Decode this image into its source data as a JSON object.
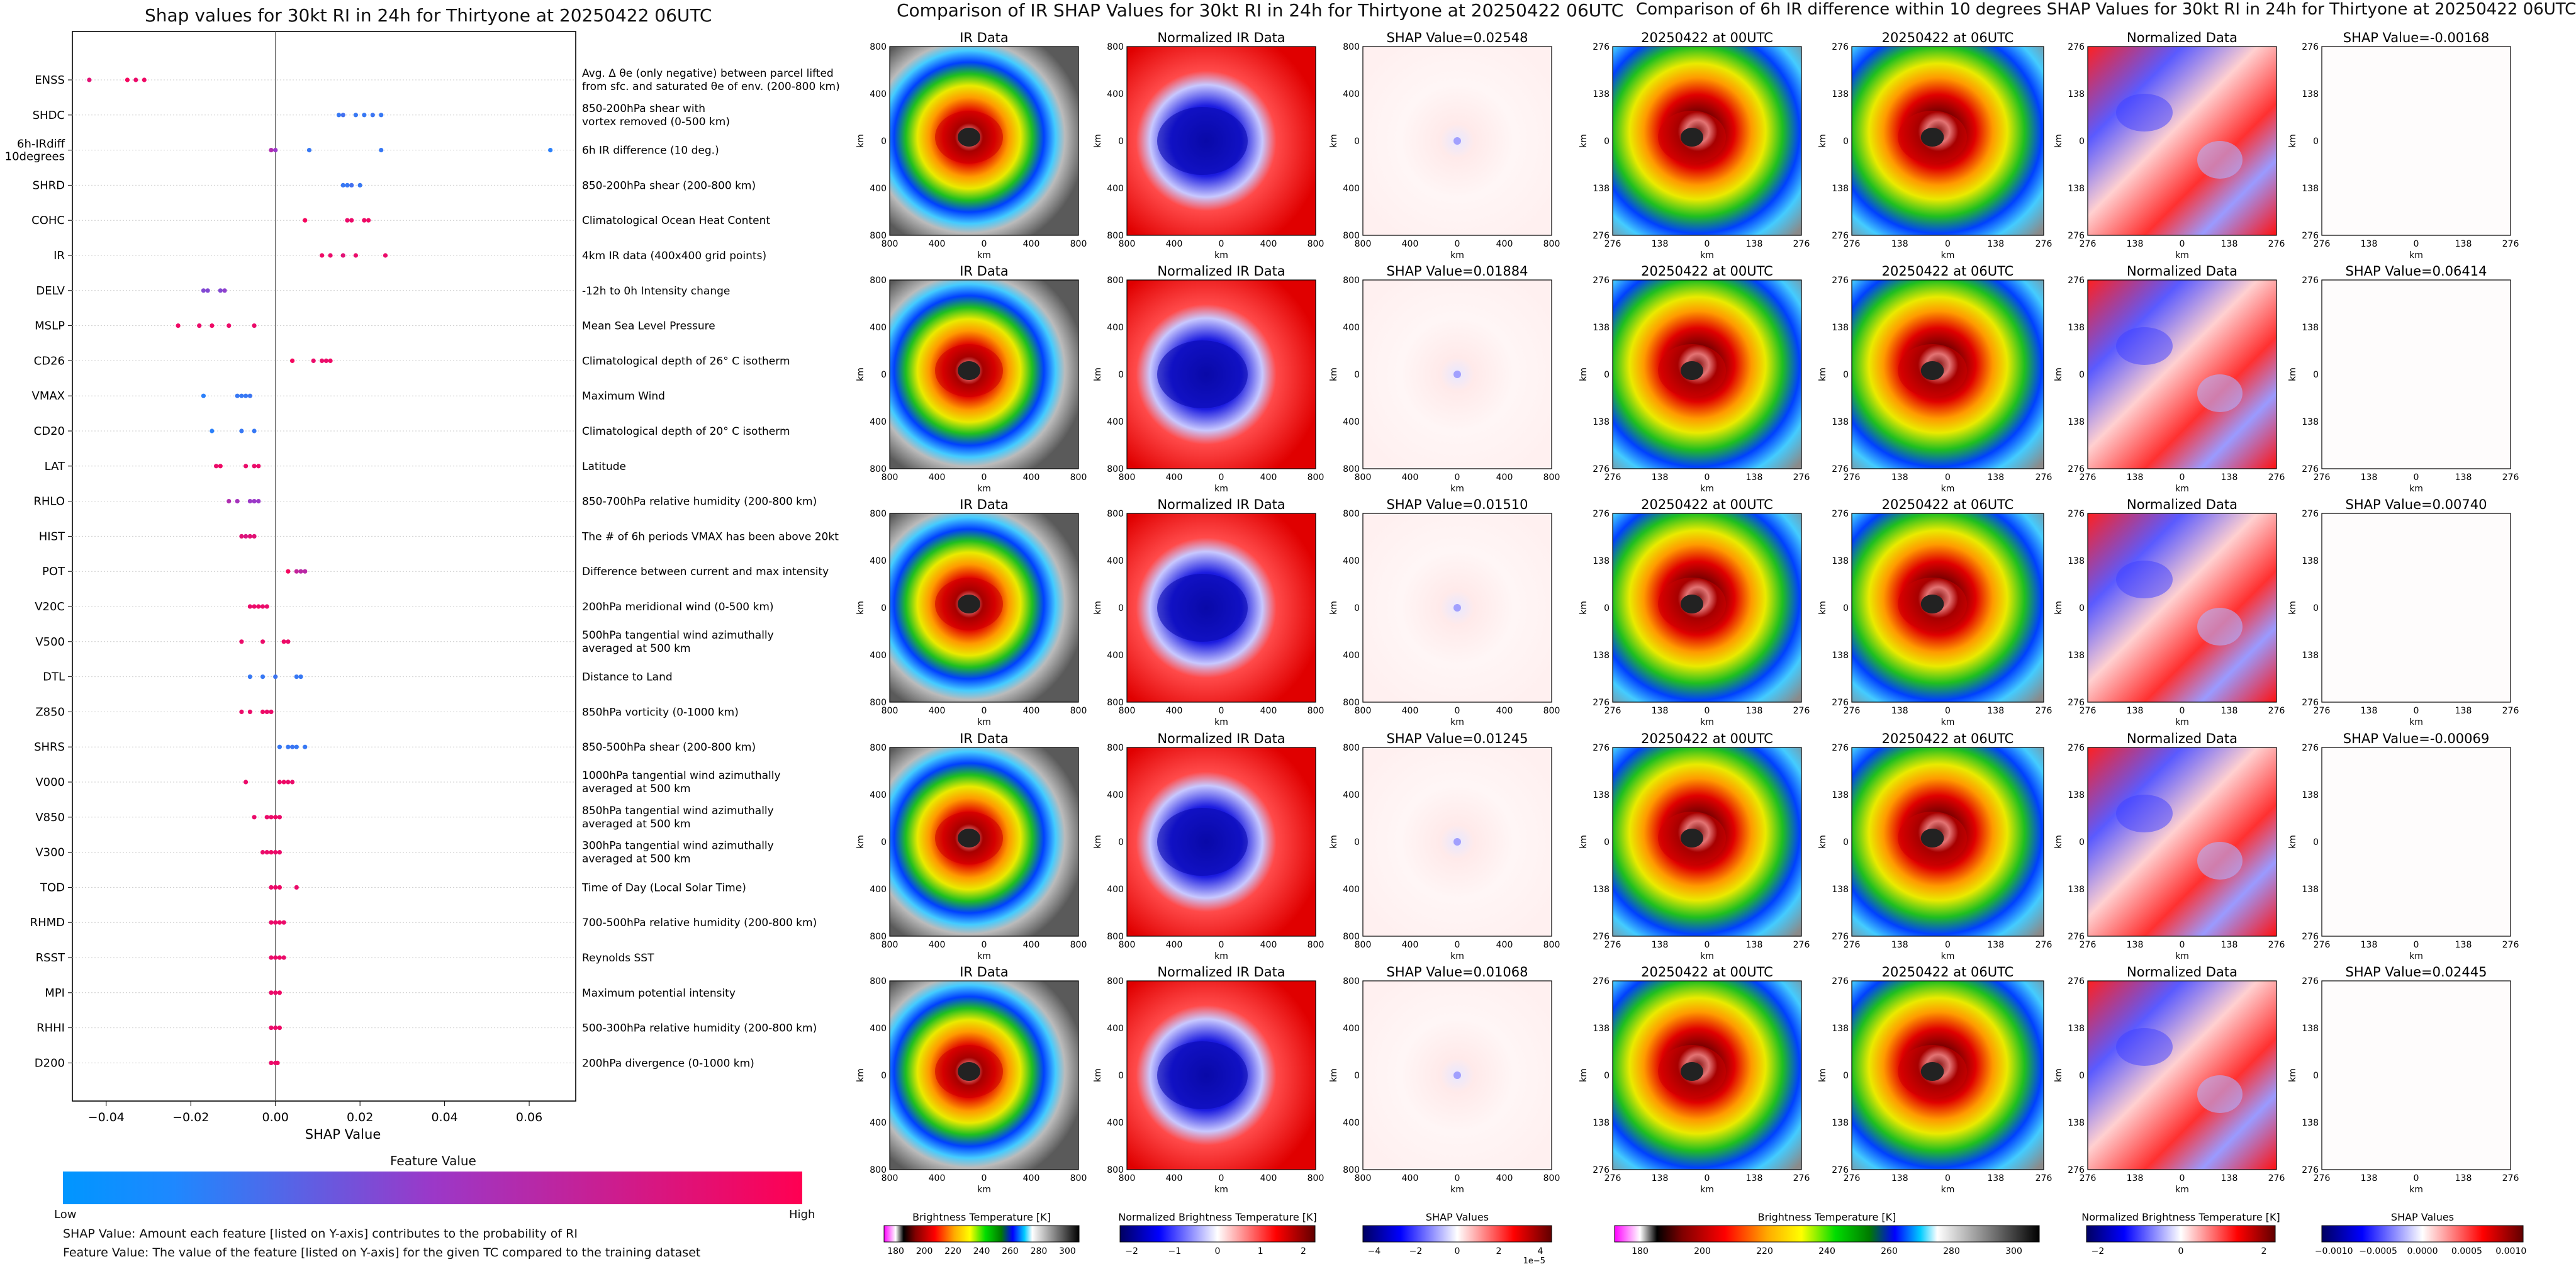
{
  "shap_panel": {
    "title": "Shap values for 30kt RI in 24h for Thirtyone at 20250422 06UTC",
    "xlabel": "SHAP Value",
    "xlim": [
      -0.048,
      0.071
    ],
    "xticks": [
      "−0.04",
      "−0.02",
      "0.00",
      "0.02",
      "0.04",
      "0.06"
    ],
    "xtick_values": [
      -0.04,
      -0.02,
      0.0,
      0.02,
      0.04,
      0.06
    ],
    "colorbar_title": "Feature Value",
    "colorbar_low": "Low",
    "colorbar_high": "High",
    "colors": {
      "low": "#1e88ff",
      "mid": "#9b38c8",
      "high": "#ff0052"
    },
    "footnote_1": "SHAP Value: Amount each feature [listed on Y-axis] contributes to the probability of RI",
    "footnote_2": "Feature Value: The value of the feature [listed on Y-axis] for the given TC compared to the training dataset"
  },
  "chart_data": [
    {
      "type": "scatter",
      "title": "Shap values for 30kt RI in 24h for Thirtyone at 20250422 06UTC",
      "xlabel": "SHAP Value",
      "features": [
        {
          "name": "ENSS",
          "desc": [
            "Avg. Δ θe (only negative) between parcel lifted",
            "from sfc. and saturated θe of env. (200-800 km)"
          ],
          "points": [
            [
              -0.044,
              0.85
            ],
            [
              -0.035,
              0.95
            ],
            [
              -0.033,
              0.9
            ],
            [
              -0.031,
              0.92
            ]
          ]
        },
        {
          "name": "SHDC",
          "desc": [
            "850-200hPa shear with",
            "vortex removed (0-500 km)"
          ],
          "points": [
            [
              0.015,
              0.1
            ],
            [
              0.016,
              0.15
            ],
            [
              0.019,
              0.1
            ],
            [
              0.021,
              0.1
            ],
            [
              0.023,
              0.12
            ],
            [
              0.025,
              0.1
            ]
          ]
        },
        {
          "name": "6h-IRdiff",
          "name2": "10degrees",
          "desc": [
            "6h IR difference (10 deg.)"
          ],
          "points": [
            [
              -0.001,
              0.6
            ],
            [
              0.0,
              0.5
            ],
            [
              0.008,
              0.1
            ],
            [
              0.025,
              0.1
            ],
            [
              0.065,
              0.05
            ]
          ]
        },
        {
          "name": "SHRD",
          "desc": [
            "850-200hPa shear (200-800 km)"
          ],
          "points": [
            [
              0.016,
              0.1
            ],
            [
              0.017,
              0.1
            ],
            [
              0.018,
              0.15
            ],
            [
              0.02,
              0.1
            ]
          ]
        },
        {
          "name": "COHC",
          "desc": [
            "Climatological Ocean Heat Content"
          ],
          "points": [
            [
              0.007,
              0.95
            ],
            [
              0.017,
              0.9
            ],
            [
              0.018,
              0.9
            ],
            [
              0.021,
              0.92
            ],
            [
              0.022,
              0.92
            ]
          ]
        },
        {
          "name": "IR",
          "desc": [
            "4km IR data (400x400 grid points)"
          ],
          "points": [
            [
              0.011,
              0.92
            ],
            [
              0.013,
              0.9
            ],
            [
              0.016,
              0.85
            ],
            [
              0.019,
              0.9
            ],
            [
              0.026,
              0.9
            ]
          ]
        },
        {
          "name": "DELV",
          "desc": [
            "-12h to 0h Intensity change"
          ],
          "points": [
            [
              -0.017,
              0.4
            ],
            [
              -0.016,
              0.4
            ],
            [
              -0.013,
              0.4
            ],
            [
              -0.012,
              0.45
            ]
          ]
        },
        {
          "name": "MSLP",
          "desc": [
            "Mean Sea Level Pressure"
          ],
          "points": [
            [
              -0.023,
              0.92
            ],
            [
              -0.018,
              0.9
            ],
            [
              -0.015,
              0.92
            ],
            [
              -0.011,
              0.9
            ],
            [
              -0.005,
              0.9
            ]
          ]
        },
        {
          "name": "CD26",
          "desc": [
            "Climatological depth of 26° C isotherm"
          ],
          "points": [
            [
              0.004,
              0.95
            ],
            [
              0.009,
              0.9
            ],
            [
              0.011,
              0.9
            ],
            [
              0.012,
              0.9
            ],
            [
              0.013,
              0.92
            ]
          ]
        },
        {
          "name": "VMAX",
          "desc": [
            "Maximum Wind"
          ],
          "points": [
            [
              -0.017,
              0.05
            ],
            [
              -0.009,
              0.1
            ],
            [
              -0.008,
              0.1
            ],
            [
              -0.007,
              0.1
            ],
            [
              -0.006,
              0.12
            ]
          ]
        },
        {
          "name": "CD20",
          "desc": [
            "Climatological depth of 20° C isotherm"
          ],
          "points": [
            [
              -0.015,
              0.05
            ],
            [
              -0.008,
              0.1
            ],
            [
              -0.005,
              0.1
            ]
          ]
        },
        {
          "name": "LAT",
          "desc": [
            "Latitude"
          ],
          "points": [
            [
              -0.014,
              0.9
            ],
            [
              -0.013,
              0.92
            ],
            [
              -0.007,
              0.9
            ],
            [
              -0.005,
              0.9
            ],
            [
              -0.004,
              0.9
            ]
          ]
        },
        {
          "name": "RHLO",
          "desc": [
            "850-700hPa relative humidity (200-800 km)"
          ],
          "points": [
            [
              -0.011,
              0.6
            ],
            [
              -0.009,
              0.55
            ],
            [
              -0.006,
              0.5
            ],
            [
              -0.005,
              0.5
            ],
            [
              -0.004,
              0.5
            ]
          ]
        },
        {
          "name": "HIST",
          "desc": [
            "The # of 6h periods VMAX has been above 20kt"
          ],
          "points": [
            [
              -0.008,
              0.85
            ],
            [
              -0.007,
              0.8
            ],
            [
              -0.006,
              0.85
            ],
            [
              -0.005,
              0.85
            ]
          ]
        },
        {
          "name": "POT",
          "desc": [
            "Difference between current and max intensity"
          ],
          "points": [
            [
              0.003,
              0.95
            ],
            [
              0.005,
              0.7
            ],
            [
              0.006,
              0.65
            ],
            [
              0.007,
              0.65
            ]
          ]
        },
        {
          "name": "V20C",
          "desc": [
            "200hPa meridional wind (0-500 km)"
          ],
          "points": [
            [
              -0.006,
              0.9
            ],
            [
              -0.005,
              0.9
            ],
            [
              -0.004,
              0.92
            ],
            [
              -0.003,
              0.9
            ],
            [
              -0.002,
              0.9
            ]
          ]
        },
        {
          "name": "V500",
          "desc": [
            "500hPa tangential wind azimuthally",
            "averaged at 500 km"
          ],
          "points": [
            [
              -0.008,
              0.9
            ],
            [
              -0.003,
              0.9
            ],
            [
              0.002,
              0.92
            ],
            [
              0.003,
              0.9
            ]
          ]
        },
        {
          "name": "DTL",
          "desc": [
            "Distance to Land"
          ],
          "points": [
            [
              -0.006,
              0.1
            ],
            [
              -0.003,
              0.1
            ],
            [
              0.0,
              0.12
            ],
            [
              0.005,
              0.1
            ],
            [
              0.006,
              0.1
            ]
          ]
        },
        {
          "name": "Z850",
          "desc": [
            "850hPa vorticity (0-1000 km)"
          ],
          "points": [
            [
              -0.008,
              0.9
            ],
            [
              -0.006,
              0.9
            ],
            [
              -0.003,
              0.92
            ],
            [
              -0.002,
              0.9
            ],
            [
              -0.001,
              0.9
            ]
          ]
        },
        {
          "name": "SHRS",
          "desc": [
            "850-500hPa shear (200-800 km)"
          ],
          "points": [
            [
              0.001,
              0.1
            ],
            [
              0.003,
              0.1
            ],
            [
              0.004,
              0.12
            ],
            [
              0.005,
              0.1
            ],
            [
              0.007,
              0.1
            ]
          ]
        },
        {
          "name": "V000",
          "desc": [
            "1000hPa tangential wind azimuthally",
            "averaged at 500 km"
          ],
          "points": [
            [
              -0.007,
              0.9
            ],
            [
              0.001,
              0.9
            ],
            [
              0.002,
              0.92
            ],
            [
              0.003,
              0.9
            ],
            [
              0.004,
              0.9
            ]
          ]
        },
        {
          "name": "V850",
          "desc": [
            "850hPa tangential wind azimuthally",
            "averaged at 500 km"
          ],
          "points": [
            [
              -0.005,
              0.9
            ],
            [
              -0.002,
              0.9
            ],
            [
              -0.001,
              0.9
            ],
            [
              0.0,
              0.92
            ],
            [
              0.001,
              0.9
            ]
          ]
        },
        {
          "name": "V300",
          "desc": [
            "300hPa tangential wind azimuthally",
            "averaged at 500 km"
          ],
          "points": [
            [
              -0.003,
              0.9
            ],
            [
              -0.002,
              0.9
            ],
            [
              -0.001,
              0.92
            ],
            [
              0.0,
              0.9
            ],
            [
              0.001,
              0.9
            ]
          ]
        },
        {
          "name": "TOD",
          "desc": [
            "Time of Day (Local Solar Time)"
          ],
          "points": [
            [
              -0.001,
              0.9
            ],
            [
              0.0,
              0.9
            ],
            [
              0.001,
              0.92
            ],
            [
              0.005,
              0.9
            ]
          ]
        },
        {
          "name": "RHMD",
          "desc": [
            "700-500hPa relative humidity (200-800 km)"
          ],
          "points": [
            [
              -0.001,
              0.9
            ],
            [
              0.0,
              0.9
            ],
            [
              0.001,
              0.92
            ],
            [
              0.002,
              0.9
            ]
          ]
        },
        {
          "name": "RSST",
          "desc": [
            "Reynolds SST"
          ],
          "points": [
            [
              -0.001,
              0.9
            ],
            [
              0.0,
              0.9
            ],
            [
              0.001,
              0.92
            ],
            [
              0.002,
              0.9
            ]
          ]
        },
        {
          "name": "MPI",
          "desc": [
            "Maximum potential intensity"
          ],
          "points": [
            [
              -0.001,
              0.9
            ],
            [
              0.0,
              0.9
            ],
            [
              0.001,
              0.92
            ]
          ]
        },
        {
          "name": "RHHI",
          "desc": [
            "500-300hPa relative humidity (200-800 km)"
          ],
          "points": [
            [
              -0.001,
              0.9
            ],
            [
              0.0,
              0.9
            ],
            [
              0.001,
              0.92
            ]
          ]
        },
        {
          "name": "D200",
          "desc": [
            "200hPa divergence (0-1000 km)"
          ],
          "points": [
            [
              -0.001,
              0.9
            ],
            [
              0.0,
              0.9
            ],
            [
              0.0005,
              0.92
            ]
          ]
        }
      ]
    },
    {
      "type": "heatmap",
      "title": "Comparison of IR SHAP Values for 30kt RI in 24h for Thirtyone at 20250422 06UTC",
      "axis_label": "km",
      "ticks": [
        "800",
        "400",
        "0",
        "400",
        "800"
      ],
      "columns": [
        "IR Data",
        "Normalized IR Data"
      ],
      "shap_titles": [
        "SHAP Value=0.02548",
        "SHAP Value=0.01884",
        "SHAP Value=0.01510",
        "SHAP Value=0.01245",
        "SHAP Value=0.01068"
      ],
      "colorbars": [
        {
          "label": "Brightness Temperature [K]",
          "ticks": [
            "180",
            "200",
            "220",
            "240",
            "260",
            "280",
            "300"
          ]
        },
        {
          "label": "Normalized Brightness Temperature [K]",
          "ticks": [
            "−2",
            "−1",
            "0",
            "1",
            "2"
          ]
        },
        {
          "label": "SHAP Values",
          "ticks": [
            "−4",
            "−2",
            "0",
            "2",
            "4"
          ],
          "offset": "1e−5"
        }
      ]
    },
    {
      "type": "heatmap",
      "title": "Comparison of 6h IR difference within 10 degrees SHAP Values for 30kt RI in 24h for Thirtyone at 20250422 06UTC",
      "axis_label": "km",
      "ticks": [
        "276",
        "138",
        "0",
        "138",
        "276"
      ],
      "columns": [
        "20250422 at 00UTC",
        "20250422 at 06UTC",
        "Normalized Data"
      ],
      "shap_titles": [
        "SHAP Value=-0.00168",
        "SHAP Value=0.06414",
        "SHAP Value=0.00740",
        "SHAP Value=-0.00069",
        "SHAP Value=0.02445"
      ],
      "colorbars": [
        {
          "label": "Brightness Temperature [K]",
          "ticks": [
            "180",
            "200",
            "220",
            "240",
            "260",
            "280",
            "300"
          ]
        },
        {
          "label": "Normalized Brightness Temperature [K]",
          "ticks": [
            "−2",
            "0",
            "2"
          ]
        },
        {
          "label": "SHAP Values",
          "ticks": [
            "−0.0010",
            "−0.0005",
            "0.0000",
            "0.0005",
            "0.0010"
          ]
        }
      ]
    }
  ]
}
